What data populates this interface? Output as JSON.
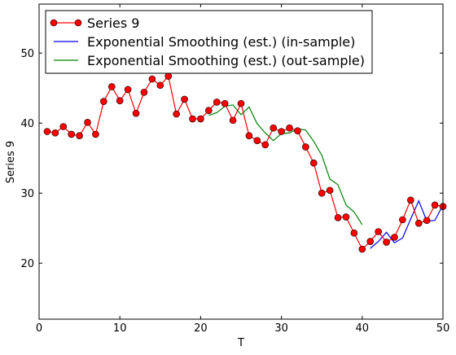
{
  "chart_data": {
    "type": "line",
    "xlabel": "T",
    "ylabel": "Series 9",
    "xlim": [
      0,
      50
    ],
    "ylim": [
      12,
      57
    ],
    "x_ticks": [
      0,
      10,
      20,
      30,
      40,
      50
    ],
    "y_ticks": [
      20,
      30,
      40,
      50
    ],
    "grid": false,
    "legend_position": "top-left",
    "series": [
      {
        "name": "Series 9",
        "color": "#ff0000",
        "marker": "circle",
        "x": [
          1,
          2,
          3,
          4,
          5,
          6,
          7,
          8,
          9,
          10,
          11,
          12,
          13,
          14,
          15,
          16,
          17,
          18,
          19,
          20,
          21,
          22,
          23,
          24,
          25,
          26,
          27,
          28,
          29,
          30,
          31,
          32,
          33,
          34,
          35,
          36,
          37,
          38,
          39,
          40,
          41,
          42,
          43,
          44,
          45,
          46,
          47,
          48,
          49,
          50
        ],
        "values": [
          38.8,
          38.6,
          39.5,
          38.4,
          38.2,
          40.1,
          38.4,
          43.1,
          45.2,
          43.2,
          44.8,
          41.4,
          44.4,
          46.3,
          45.4,
          46.7,
          41.3,
          43.4,
          40.6,
          40.6,
          41.8,
          43.0,
          42.8,
          40.4,
          42.8,
          38.2,
          37.5,
          36.9,
          39.3,
          38.8,
          39.3,
          38.9,
          36.6,
          34.3,
          30.0,
          30.4,
          26.5,
          26.6,
          24.3,
          22.0,
          23.1,
          24.5,
          23.0,
          23.7,
          26.2,
          29.0,
          25.7,
          26.1,
          28.3,
          28.1
        ]
      },
      {
        "name": "Exponential Smoothing (est.) (in-sample)",
        "color": "#0000ff",
        "marker": "none",
        "x": [
          41,
          42,
          43,
          44,
          45,
          46,
          47,
          48,
          49,
          50
        ],
        "values": [
          22.1,
          23.1,
          24.4,
          22.9,
          23.6,
          26.3,
          28.9,
          26.0,
          26.1,
          28.3
        ]
      },
      {
        "name": "Exponential Smoothing (est.) (out-sample)",
        "color": "#008000",
        "marker": "none",
        "x": [
          21,
          22,
          23,
          24,
          25,
          26,
          27,
          28,
          29,
          30,
          31,
          32,
          33,
          34,
          35,
          36,
          37,
          38,
          39,
          40
        ],
        "values": [
          41.1,
          41.5,
          42.4,
          42.6,
          41.2,
          42.3,
          39.9,
          38.6,
          37.5,
          38.5,
          38.6,
          39.2,
          39.0,
          37.4,
          35.4,
          32.0,
          31.2,
          28.3,
          27.3,
          25.5
        ]
      }
    ]
  }
}
